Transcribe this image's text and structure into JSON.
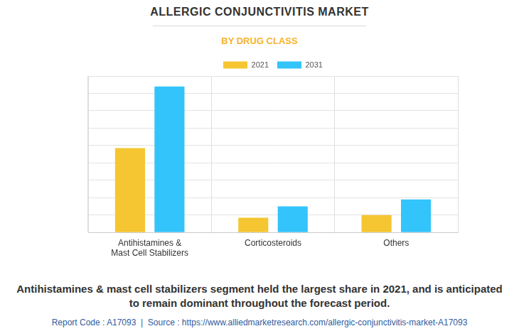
{
  "chart_data": {
    "type": "bar",
    "title": "ALLERGIC CONJUNCTIVITIS MARKET",
    "subtitle": "BY DRUG CLASS",
    "categories": [
      [
        "Antihistamines &",
        "Mast Cell Stabilizers"
      ],
      "Corticosteroids",
      "Others"
    ],
    "series": [
      {
        "name": "2021",
        "color": "#f5c631",
        "values": [
          4.85,
          0.85,
          1.0
        ]
      },
      {
        "name": "2031",
        "color": "#33c4fb",
        "values": [
          8.4,
          1.5,
          1.9
        ]
      }
    ],
    "ylim": [
      0,
      9
    ],
    "yticks": [
      0,
      1,
      2,
      3,
      4,
      5,
      6,
      7,
      8,
      9
    ],
    "grid": true,
    "legend": "top",
    "tick_labels": "x",
    "caption": "Antihistamines & mast cell stabilizers segment held the largest share in 2021, and is anticipated to remain dominant throughout the forecast period.",
    "source": "Report Code : A17093  |  Source : https://www.alliedmarketresearch.com/allergic-conjunctivitis-market-A17093"
  }
}
